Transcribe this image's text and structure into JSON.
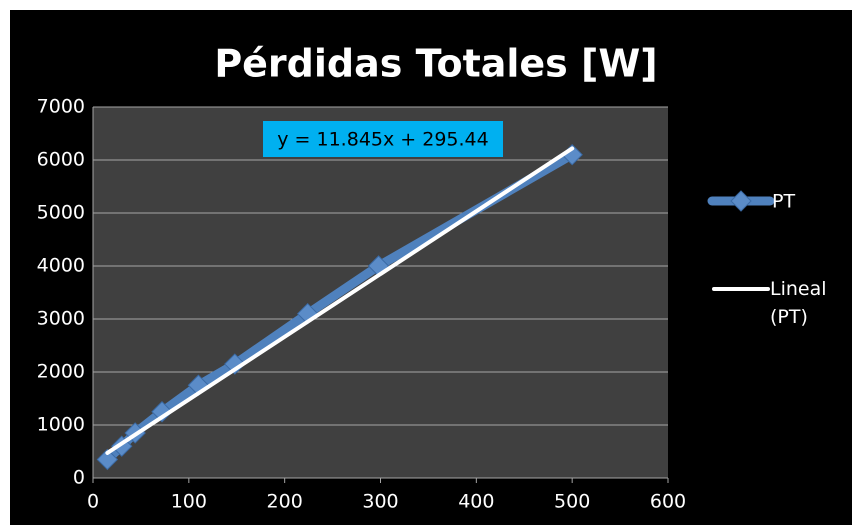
{
  "chart_data": {
    "type": "scatter",
    "title": "Pérdidas Totales [W]",
    "annotation": "y = 11.845x + 295.44",
    "series": [
      {
        "name": "PT",
        "color": "#4f81bd",
        "x": [
          15,
          30,
          44,
          72,
          110,
          148,
          224,
          298,
          500
        ],
        "values": [
          350,
          600,
          850,
          1250,
          1750,
          2150,
          3100,
          4000,
          6100
        ]
      },
      {
        "name": "Lineal (PT)",
        "color": "#ffffff",
        "x": [
          15,
          500
        ],
        "values": [
          473,
          6218
        ]
      }
    ],
    "xlim": [
      0,
      600
    ],
    "xticks": [
      0,
      100,
      200,
      300,
      400,
      500,
      600
    ],
    "ylim": [
      0,
      7000
    ],
    "yticks": [
      0,
      1000,
      2000,
      3000,
      4000,
      5000,
      6000,
      7000
    ],
    "grid": true,
    "legend": "right"
  }
}
